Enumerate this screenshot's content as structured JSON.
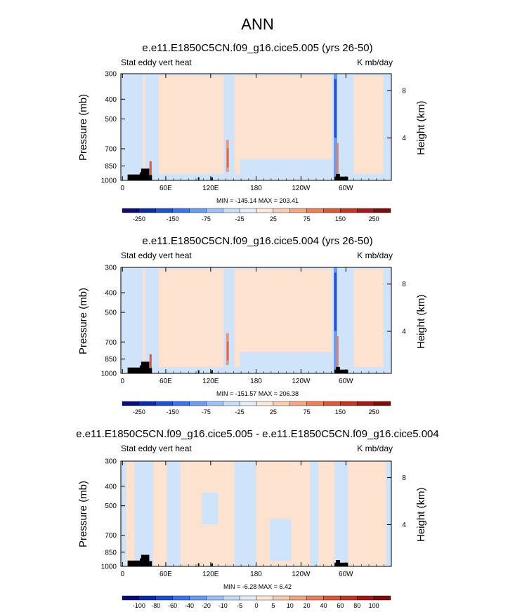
{
  "title": "ANN",
  "colors": {
    "palette_blues": [
      "#0a0a78",
      "#0c2aa8",
      "#1a4fd6",
      "#3a73ee",
      "#6b9bf5",
      "#9cc0fa",
      "#c7def9",
      "#e4eefb"
    ],
    "palette_reds": [
      "#fbe7d9",
      "#f8cdb0",
      "#f4a581",
      "#ec7e5a",
      "#dd5638",
      "#c53522",
      "#a31916",
      "#7a0c0c"
    ],
    "field_blue": "#cfe3fb",
    "field_peach": "#fde2cf",
    "topography": "#000000"
  },
  "chart_data": [
    {
      "type": "heatmap",
      "title": "e.e11.E1850C5CN.f09_g16.cice5.005 (yrs 26-50)",
      "left_label": "Stat eddy vert heat",
      "right_label": "K mb/day",
      "ylabel": "Pressure (mb)",
      "ylabel_right": "Height (km)",
      "y_ticks": [
        "300",
        "400",
        "500",
        "700",
        "850",
        "1000"
      ],
      "y_right_ticks": [
        "8",
        "4"
      ],
      "x_ticks": [
        "0",
        "60E",
        "120E",
        "180",
        "120W",
        "60W"
      ],
      "min": -145.14,
      "max": 203.41,
      "minmax_text": "MIN = -145.14  MAX = 203.41",
      "colorbar_labels": [
        "-250",
        "-150",
        "-75",
        "-25",
        "25",
        "75",
        "150",
        "250"
      ]
    },
    {
      "type": "heatmap",
      "title": "e.e11.E1850C5CN.f09_g16.cice5.004 (yrs 26-50)",
      "left_label": "Stat eddy vert heat",
      "right_label": "K mb/day",
      "ylabel": "Pressure (mb)",
      "ylabel_right": "Height (km)",
      "y_ticks": [
        "300",
        "400",
        "500",
        "700",
        "850",
        "1000"
      ],
      "y_right_ticks": [
        "8",
        "4"
      ],
      "x_ticks": [
        "0",
        "60E",
        "120E",
        "180",
        "120W",
        "60W"
      ],
      "min": -151.57,
      "max": 206.38,
      "minmax_text": "MIN = -151.57  MAX = 206.38",
      "colorbar_labels": [
        "-250",
        "-150",
        "-75",
        "-25",
        "25",
        "75",
        "150",
        "250"
      ]
    },
    {
      "type": "heatmap",
      "title": "e.e11.E1850C5CN.f09_g16.cice5.005 - e.e11.E1850C5CN.f09_g16.cice5.004",
      "left_label": "Stat eddy vert heat",
      "right_label": "K mb/day",
      "ylabel": "Pressure (mb)",
      "ylabel_right": "Height (km)",
      "y_ticks": [
        "300",
        "400",
        "500",
        "700",
        "850",
        "1000"
      ],
      "y_right_ticks": [
        "8",
        "4"
      ],
      "x_ticks": [
        "0",
        "60E",
        "120E",
        "180",
        "120W",
        "60W"
      ],
      "min": -6.28,
      "max": 6.42,
      "minmax_text": "MIN =  -6.28  MAX =   6.42",
      "colorbar_labels": [
        "-100",
        "-80",
        "-60",
        "-40",
        "-20",
        "-10",
        "-5",
        "0",
        "5",
        "10",
        "20",
        "40",
        "60",
        "80",
        "100"
      ]
    }
  ]
}
